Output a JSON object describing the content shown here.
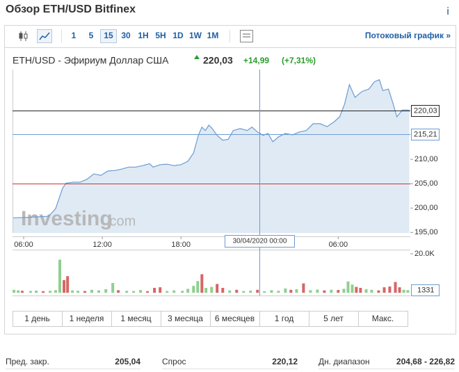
{
  "header": {
    "title": "Обзор ETH/USD Bitfinex",
    "info_icon": "i"
  },
  "toolbar": {
    "intervals": [
      "1",
      "5",
      "15",
      "30",
      "1H",
      "5H",
      "1D",
      "1W",
      "1M"
    ],
    "selected": "15",
    "stream_link": "Потоковый график »"
  },
  "quote": {
    "name": "ETH/USD - Эфириум Доллар США",
    "last": "220,03",
    "change": "+14,99",
    "change_pct": "(+7,31%)"
  },
  "chart_data": {
    "type": "area",
    "watermark": [
      "Investing",
      ".com"
    ],
    "color": "#6c9bd0",
    "fill": "#dfeaf5",
    "x": [
      -0.85,
      0.32,
      1.91,
      2.44,
      2.97,
      3.24,
      3.77,
      4.3,
      4.83,
      5.36,
      5.89,
      6.43,
      6.96,
      7.49,
      8.02,
      8.55,
      9.08,
      9.61,
      9.88,
      10.41,
      10.94,
      11.47,
      12.0,
      12.53,
      12.96,
      13.33,
      13.6,
      13.86,
      14.13,
      14.39,
      14.76,
      15.19,
      15.61,
      15.99,
      16.52,
      17.05,
      17.42,
      17.84,
      18.27,
      18.64,
      19.01,
      19.44,
      19.97,
      20.5,
      21.03,
      21.56,
      22.09,
      22.62,
      23.15,
      23.69,
      24.11,
      24.48,
      24.85,
      25.28,
      25.81,
      26.34,
      26.77,
      27.14,
      27.4,
      27.83,
      28.2,
      28.47,
      28.89,
      29.42
    ],
    "values": [
      198.0,
      198.1,
      198.3,
      199.9,
      204.1,
      205.1,
      205.3,
      205.3,
      205.9,
      207.0,
      206.7,
      207.6,
      207.7,
      208.0,
      208.4,
      208.4,
      208.7,
      209.1,
      208.4,
      208.9,
      209.0,
      208.7,
      208.9,
      209.6,
      211.3,
      214.9,
      216.6,
      215.9,
      217.0,
      216.3,
      214.9,
      213.9,
      214.1,
      215.9,
      216.3,
      215.9,
      216.6,
      215.6,
      214.9,
      215.3,
      213.6,
      214.6,
      215.3,
      215.0,
      215.6,
      215.9,
      217.3,
      217.3,
      216.7,
      217.7,
      218.7,
      221.3,
      225.3,
      222.7,
      223.9,
      224.4,
      225.9,
      226.3,
      224.1,
      224.4,
      221.3,
      218.7,
      220.1,
      220.1
    ],
    "xlim": [
      -0.85,
      29.5
    ],
    "xticks": [
      {
        "value": 0,
        "label": "06:00"
      },
      {
        "value": 6,
        "label": "12:00"
      },
      {
        "value": 12,
        "label": "18:00"
      },
      {
        "value": 24,
        "label": "06:00"
      }
    ],
    "ylim": [
      194.9,
      228.4
    ],
    "yticks": [
      {
        "value": 195,
        "label": "195,00"
      },
      {
        "value": 200,
        "label": "200,00"
      },
      {
        "value": 205,
        "label": "205,00"
      },
      {
        "value": 210,
        "label": "210,00"
      }
    ],
    "reference_lines": [
      {
        "value": 220.03,
        "label": "220,03",
        "color": "#222222"
      },
      {
        "value": 205,
        "color": "#cc3333"
      }
    ],
    "crosshair": {
      "x": 18,
      "x_label": "30/04/2020 00:00",
      "y": 215.21,
      "y_label": "215,21",
      "color": "#6c9bd0"
    },
    "volume": {
      "ylim": [
        0,
        20000
      ],
      "yticks": [
        {
          "value": 20000,
          "label": "20.0K"
        }
      ],
      "last": 1331,
      "x": [
        -0.74,
        -0.42,
        -0.11,
        0.53,
        0.96,
        1.49,
        2.02,
        2.44,
        2.76,
        3.08,
        3.35,
        3.72,
        4.14,
        4.67,
        5.2,
        5.73,
        6.27,
        6.8,
        7.22,
        7.86,
        8.39,
        8.92,
        9.45,
        9.98,
        10.41,
        10.94,
        11.47,
        12.11,
        12.53,
        12.96,
        13.28,
        13.6,
        13.91,
        14.34,
        14.76,
        15.19,
        15.72,
        16.25,
        16.78,
        17.31,
        17.84,
        18.37,
        18.91,
        19.44,
        19.97,
        20.39,
        20.82,
        21.35,
        21.88,
        22.41,
        22.94,
        23.47,
        24.0,
        24.43,
        24.75,
        25.07,
        25.38,
        25.7,
        26.13,
        26.55,
        27.08,
        27.51,
        27.93,
        28.36,
        28.68,
        29.0,
        29.31
      ],
      "values": [
        1500,
        1200,
        1000,
        900,
        1100,
        800,
        1000,
        1300,
        17000,
        6500,
        8500,
        1200,
        1000,
        900,
        1500,
        1200,
        1800,
        5000,
        1300,
        1000,
        900,
        1400,
        800,
        2500,
        2800,
        900,
        1200,
        1000,
        2000,
        3500,
        6000,
        9500,
        2500,
        3000,
        4500,
        2500,
        1200,
        1500,
        900,
        1100,
        1500,
        800,
        1300,
        1000,
        2200,
        1500,
        1800,
        4800,
        1300,
        1600,
        1200,
        1500,
        1400,
        2000,
        5800,
        4200,
        3000,
        2500,
        1800,
        1500,
        1200,
        2800,
        3200,
        5500,
        2800,
        1500,
        1331
      ],
      "colors": [
        "#8fd08f",
        "#8fd08f",
        "#d66666",
        "#8fd08f",
        "#8fd08f",
        "#d66666",
        "#8fd08f",
        "#8fd08f",
        "#8fd08f",
        "#d66666",
        "#d66666",
        "#8fd08f",
        "#8fd08f",
        "#d66666",
        "#8fd08f",
        "#8fd08f",
        "#8fd08f",
        "#8fd08f",
        "#d66666",
        "#8fd08f",
        "#8fd08f",
        "#8fd08f",
        "#d66666",
        "#d66666",
        "#d66666",
        "#8fd08f",
        "#8fd08f",
        "#8fd08f",
        "#8fd08f",
        "#8fd08f",
        "#8fd08f",
        "#d66666",
        "#8fd08f",
        "#8fd08f",
        "#d66666",
        "#d66666",
        "#8fd08f",
        "#d66666",
        "#8fd08f",
        "#8fd08f",
        "#d66666",
        "#8fd08f",
        "#8fd08f",
        "#8fd08f",
        "#8fd08f",
        "#d66666",
        "#8fd08f",
        "#d66666",
        "#8fd08f",
        "#8fd08f",
        "#d66666",
        "#8fd08f",
        "#d66666",
        "#8fd08f",
        "#8fd08f",
        "#8fd08f",
        "#d66666",
        "#d66666",
        "#8fd08f",
        "#8fd08f",
        "#d66666",
        "#d66666",
        "#d66666",
        "#d66666",
        "#d66666",
        "#8fd08f",
        "#8fd08f"
      ]
    }
  },
  "ranges": [
    "1 день",
    "1 неделя",
    "1 месяц",
    "3 месяца",
    "6 месяцев",
    "1 год",
    "5 лет",
    "Макс."
  ],
  "stats": [
    [
      "Пред. закр.",
      "205,04"
    ],
    [
      "Спрос",
      "220,12"
    ],
    [
      "Дн. диапазон",
      "204,68 - 226,82"
    ]
  ]
}
